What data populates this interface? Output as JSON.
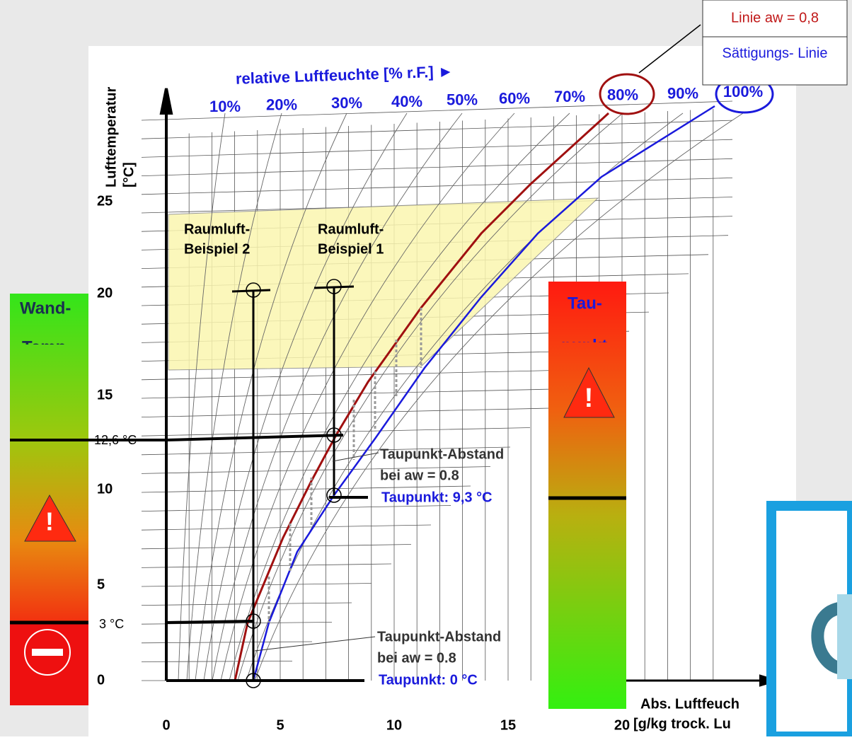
{
  "legend": {
    "aw_line": "Linie aw = 0,8",
    "saturation_line": "Sättigungs- Linie"
  },
  "humidity_header": "relative Luftfeuchte [% r.F.] ►",
  "rh_labels": [
    "10%",
    "20%",
    "30%",
    "40%",
    "50%",
    "60%",
    "70%",
    "80%",
    "90%",
    "100%"
  ],
  "y_axis_title": [
    "Lufttemperatur",
    "[°C]"
  ],
  "y_ticks": [
    "0",
    "5",
    "10",
    "15",
    "20",
    "25"
  ],
  "y_marks": [
    "12,6 °C",
    "3 °C"
  ],
  "x_ticks": [
    "0",
    "5",
    "10",
    "15",
    "20"
  ],
  "x_axis_title": [
    "Abs. Luftfeuch",
    "[g/kg trock. Lu"
  ],
  "room_examples": [
    {
      "line1": "Raumluft-",
      "line2": "Beispiel 2"
    },
    {
      "line1": "Raumluft-",
      "line2": "Beispiel 1"
    }
  ],
  "annotations": [
    {
      "line1": "Taupunkt-Abstand",
      "line2": "bei aw = 0.8",
      "dew": "Taupunkt: 9,3 °C"
    },
    {
      "line1": "Taupunkt-Abstand",
      "line2": "bei aw = 0.8",
      "dew": "Taupunkt: 0 °C"
    }
  ],
  "wall_bar": {
    "line1": "Wand-",
    "line2": "Temp."
  },
  "dew_bar": {
    "line1": "Tau-",
    "line2": "punkt"
  }
}
